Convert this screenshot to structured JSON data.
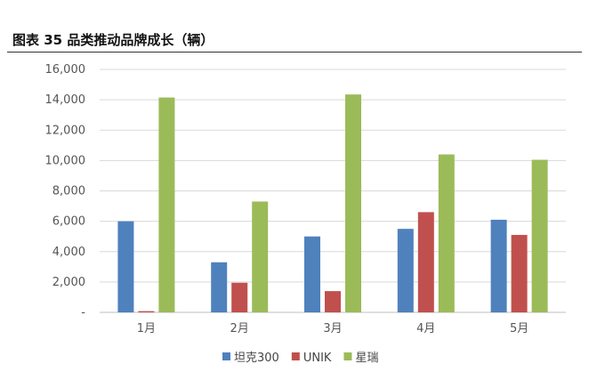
{
  "figure_title": "图表 35 品类推动品牌成长（辆）",
  "chart_data": {
    "type": "bar",
    "categories": [
      "1月",
      "2月",
      "3月",
      "4月",
      "5月"
    ],
    "series": [
      {
        "name": "坦克300",
        "color": "#4F81BD",
        "values": [
          6000,
          3300,
          5000,
          5500,
          6100
        ]
      },
      {
        "name": "UNIK",
        "color": "#C0504D",
        "values": [
          80,
          1950,
          1400,
          6600,
          5100
        ]
      },
      {
        "name": "星瑞",
        "color": "#9BBB59",
        "values": [
          14150,
          7300,
          14350,
          10400,
          10050
        ]
      }
    ],
    "y_ticks": [
      "-",
      "2,000",
      "4,000",
      "6,000",
      "8,000",
      "10,000",
      "12,000",
      "14,000",
      "16,000"
    ],
    "ylim": [
      0,
      16000
    ],
    "grid": true,
    "legend_position": "bottom"
  }
}
